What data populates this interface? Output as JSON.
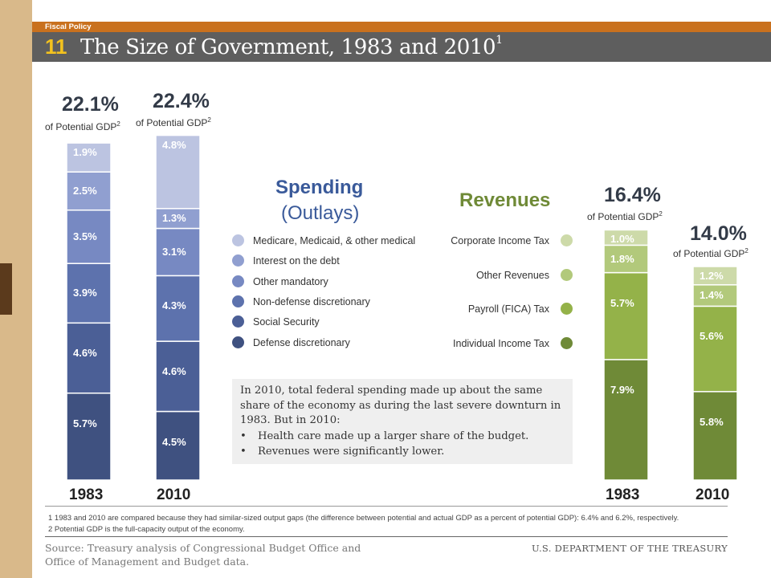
{
  "header": {
    "section": "Fiscal Policy",
    "number": "11",
    "title": "The Size of Government, 1983 and 2010",
    "title_sup": "1"
  },
  "colors": {
    "header_orange": "#c9711e",
    "title_bar": "#5e5e5e",
    "number_yellow": "#f3c21e"
  },
  "chart_data": [
    {
      "type": "bar",
      "stacked": true,
      "title": "Spending (Outlays)",
      "categories": [
        "1983",
        "2010"
      ],
      "totals": [
        "22.1%",
        "22.4%"
      ],
      "total_caption": "of Potential GDP",
      "total_caption_sup": "2",
      "series": [
        {
          "name": "Defense discretionary",
          "values": [
            5.7,
            4.5
          ],
          "labels": [
            "5.7%",
            "4.5%"
          ],
          "color": "#3f5180"
        },
        {
          "name": "Social Security",
          "values": [
            4.6,
            4.6
          ],
          "labels": [
            "4.6%",
            "4.6%"
          ],
          "color": "#4b5f96"
        },
        {
          "name": "Non-defense discretionary",
          "values": [
            3.9,
            4.3
          ],
          "labels": [
            "3.9%",
            "4.3%"
          ],
          "color": "#5d72ad"
        },
        {
          "name": "Other mandatory",
          "values": [
            3.5,
            3.1
          ],
          "labels": [
            "3.5%",
            "3.1%"
          ],
          "color": "#7789c2"
        },
        {
          "name": "Interest on the debt",
          "values": [
            2.5,
            1.3
          ],
          "labels": [
            "2.5%",
            "1.3%"
          ],
          "color": "#909fd0"
        },
        {
          "name": "Medicare, Medicaid, & other medical",
          "values": [
            1.9,
            4.8
          ],
          "labels": [
            "1.9%",
            "4.8%"
          ],
          "color": "#bcc4e1"
        }
      ]
    },
    {
      "type": "bar",
      "stacked": true,
      "title": "Revenues",
      "categories": [
        "1983",
        "2010"
      ],
      "totals": [
        "16.4%",
        "14.0%"
      ],
      "total_caption": "of Potential GDP",
      "total_caption_sup": "2",
      "series": [
        {
          "name": "Individual Income Tax",
          "values": [
            7.9,
            5.8
          ],
          "labels": [
            "7.9%",
            "5.8%"
          ],
          "color": "#6f8a37"
        },
        {
          "name": "Payroll (FICA) Tax",
          "values": [
            5.7,
            5.6
          ],
          "labels": [
            "5.7%",
            "5.6%"
          ],
          "color": "#94b249"
        },
        {
          "name": "Other Revenues",
          "values": [
            1.8,
            1.4
          ],
          "labels": [
            "1.8%",
            "1.4%"
          ],
          "color": "#b2c97b"
        },
        {
          "name": "Corporate Income Tax",
          "values": [
            1.0,
            1.2
          ],
          "labels": [
            "1.0%",
            "1.2%"
          ],
          "color": "#cddaa9"
        }
      ]
    }
  ],
  "legend": {
    "spending_title": "Spending",
    "spending_sub": "(Outlays)",
    "revenues_title": "Revenues"
  },
  "callout": {
    "text": "In 2010, total federal spending made up about the same share of the economy as during the last severe downturn in 1983. But in 2010:",
    "bullets": [
      "Health care made up a larger share of the budget.",
      "Revenues were significantly lower."
    ]
  },
  "footnotes": [
    "1 1983 and 2010 are compared because they had similar-sized output gaps (the difference between potential and actual GDP as a percent of potential GDP): 6.4% and 6.2%, respectively.",
    "2 Potential GDP is the full-capacity output of the economy."
  ],
  "source": "Source: Treasury analysis of Congressional Budget Office and Office of Management and Budget data.",
  "agency": "U.S. DEPARTMENT OF THE TREASURY"
}
